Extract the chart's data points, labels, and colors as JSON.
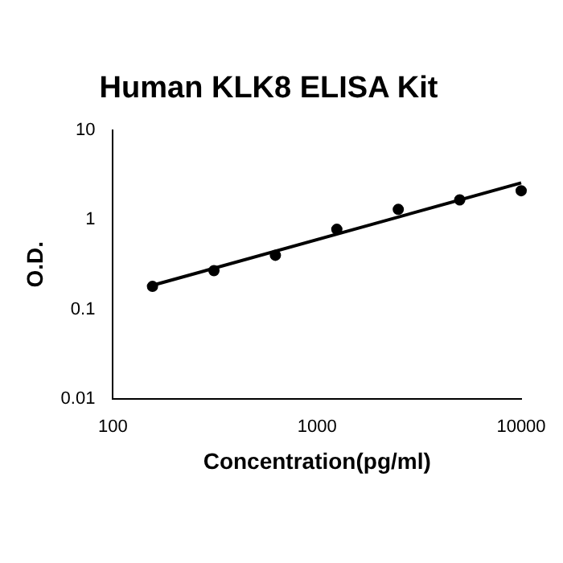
{
  "chart_data": {
    "type": "scatter",
    "title": "Human KLK8 ELISA Kit",
    "xlabel": "Concentration(pg/ml)",
    "ylabel": "O.D.",
    "log": "xy",
    "xlim": [
      100,
      10000
    ],
    "xticks": [
      100,
      1000,
      10000
    ],
    "ylim": [
      0.01,
      10
    ],
    "yticks": [
      0.01,
      0.1,
      1,
      10
    ],
    "grid": false,
    "legend": false,
    "marker": "circle",
    "series": [
      {
        "type": "scatter",
        "color": "#000000",
        "x": [
          156.25,
          312.5,
          625,
          1250,
          2500,
          5000,
          10000
        ],
        "values": [
          0.18,
          0.27,
          0.4,
          0.78,
          1.3,
          1.66,
          2.1
        ]
      },
      {
        "type": "line",
        "marker": "none",
        "color": "#000000",
        "x": [
          156.25,
          10000
        ],
        "values": [
          0.185,
          2.57
        ]
      }
    ]
  }
}
